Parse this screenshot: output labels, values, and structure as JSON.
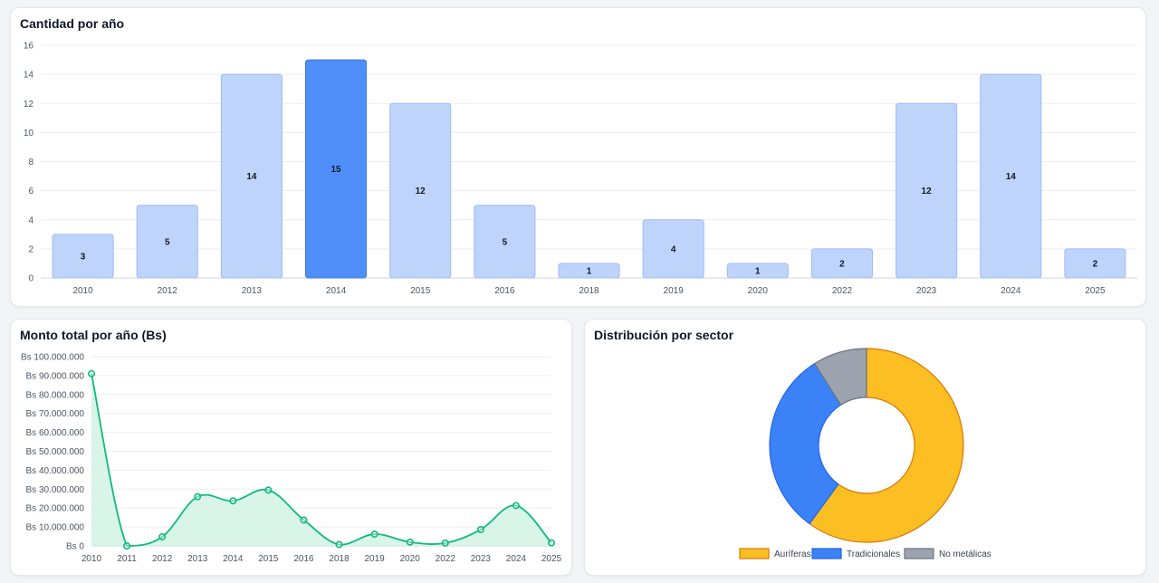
{
  "cards": {
    "bar_title": "Cantidad por año",
    "line_title": "Monto total por año (Bs)",
    "pie_title": "Distribución por sector"
  },
  "chart_data": [
    {
      "type": "bar",
      "title": "Cantidad por año",
      "categories": [
        "2010",
        "2012",
        "2013",
        "2014",
        "2015",
        "2016",
        "2018",
        "2019",
        "2020",
        "2022",
        "2023",
        "2024",
        "2025"
      ],
      "values": [
        3,
        5,
        14,
        15,
        12,
        5,
        1,
        4,
        1,
        2,
        12,
        14,
        2
      ],
      "ylim": [
        0,
        16
      ],
      "yticks": [
        0,
        2,
        4,
        6,
        8,
        10,
        12,
        14,
        16
      ],
      "highlight_category": "2014",
      "data_labels": true,
      "grid": true,
      "colors": {
        "bar": "#bfd4fb",
        "bar_border": "#9cbcf7",
        "highlight": "#4f8ef7",
        "highlight_border": "#3b7ae8"
      }
    },
    {
      "type": "area",
      "title": "Monto total por año (Bs)",
      "x": [
        "2010",
        "2011",
        "2012",
        "2013",
        "2014",
        "2015",
        "2016",
        "2018",
        "2019",
        "2020",
        "2022",
        "2023",
        "2024",
        "2025"
      ],
      "values": [
        91000000,
        0,
        4800000,
        26000000,
        23800000,
        29500000,
        13700000,
        700000,
        6200000,
        2000000,
        1500000,
        8600000,
        21300000,
        1600000
      ],
      "ylim": [
        0,
        100000000
      ],
      "yticks": [
        {
          "value": 0,
          "label": "Bs 0"
        },
        {
          "value": 10000000,
          "label": "Bs 10.000.000"
        },
        {
          "value": 20000000,
          "label": "Bs 20.000.000"
        },
        {
          "value": 30000000,
          "label": "Bs 30.000.000"
        },
        {
          "value": 40000000,
          "label": "Bs 40.000.000"
        },
        {
          "value": 50000000,
          "label": "Bs 50.000.000"
        },
        {
          "value": 60000000,
          "label": "Bs 60.000.000"
        },
        {
          "value": 70000000,
          "label": "Bs 70.000.000"
        },
        {
          "value": 80000000,
          "label": "Bs 80.000.000"
        },
        {
          "value": 90000000,
          "label": "Bs 90.000.000"
        },
        {
          "value": 100000000,
          "label": "Bs 100.000.000"
        }
      ],
      "grid": true,
      "colors": {
        "line": "#10b981",
        "fill": "#d1f3e4"
      }
    },
    {
      "type": "pie",
      "title": "Distribución por sector",
      "donut": true,
      "labels": [
        "Auríferas",
        "Tradicionales",
        "No metálicas"
      ],
      "values": [
        60,
        31,
        9
      ],
      "colors": [
        "#fbbf24",
        "#3b82f6",
        "#9ca3af"
      ],
      "border_colors": [
        "#d97706",
        "#2563eb",
        "#6b7280"
      ],
      "legend": "bottom"
    }
  ]
}
